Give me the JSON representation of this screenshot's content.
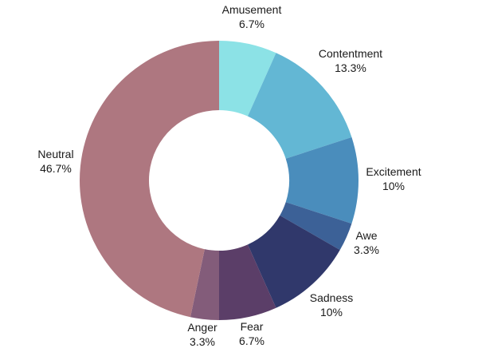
{
  "chart_data": {
    "type": "pie",
    "donut": true,
    "title": "",
    "slices": [
      {
        "label": "Amusement",
        "value_label": "6.7%",
        "value": 6.7,
        "color": "#8ce2e6"
      },
      {
        "label": "Contentment",
        "value_label": "13.3%",
        "value": 13.3,
        "color": "#63b7d4"
      },
      {
        "label": "Excitement",
        "value_label": "10%",
        "value": 10,
        "color": "#4a8dbc"
      },
      {
        "label": "Awe",
        "value_label": "3.3%",
        "value": 3.3,
        "color": "#3c6197"
      },
      {
        "label": "Sadness",
        "value_label": "10%",
        "value": 10,
        "color": "#30386b"
      },
      {
        "label": "Fear",
        "value_label": "6.7%",
        "value": 6.7,
        "color": "#5b3e68"
      },
      {
        "label": "Anger",
        "value_label": "3.3%",
        "value": 3.3,
        "color": "#835c7a"
      },
      {
        "label": "Neutral",
        "value_label": "46.7%",
        "value": 46.7,
        "color": "#ae7780"
      }
    ]
  }
}
